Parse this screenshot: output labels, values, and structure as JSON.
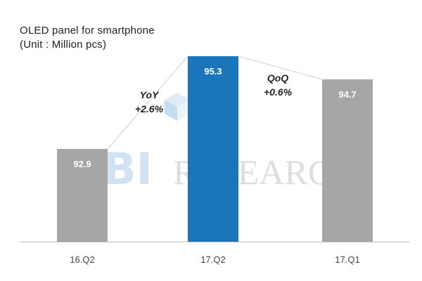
{
  "chart_data": {
    "type": "bar",
    "title": "OLED panel for smartphone",
    "subtitle": "(Unit : Million pcs)",
    "categories": [
      "16.Q2",
      "17.Q2",
      "17.Q1"
    ],
    "values": [
      92.9,
      95.3,
      94.7
    ],
    "value_labels": [
      "92.9",
      "95.3",
      "94.7"
    ],
    "ylim": [
      90.5,
      95.3
    ],
    "grid": false,
    "legend": "none",
    "colors": {
      "bar_default": "#a6a6a6",
      "bar_highlight": "#1b75bb",
      "value_label": "#ffffff",
      "axis_line": "#bfbfbf",
      "connector": "#d0d0d0"
    },
    "highlight_index": 1,
    "annotations": [
      {
        "id": "yoy",
        "lines": [
          "YoY",
          "+2.6%"
        ]
      },
      {
        "id": "qoq",
        "lines": [
          "QoQ",
          "+0.6%"
        ]
      }
    ]
  },
  "watermark": {
    "logo_text": "UBI",
    "text": "RESEARCH",
    "color": "#d9d9d9",
    "logo_color": "#5b9bd5"
  }
}
